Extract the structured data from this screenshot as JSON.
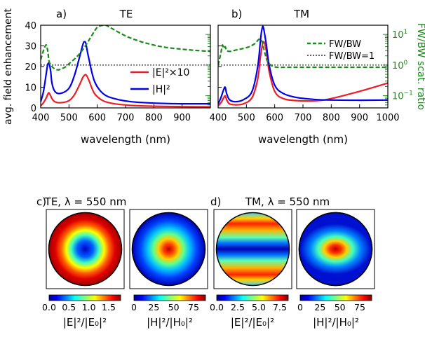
{
  "chart_data": [
    {
      "type": "line",
      "panel_label": "a)",
      "title": "TE",
      "xlabel": "wavelength (nm)",
      "ylabel": "avg. field enhancement",
      "y2label": "FW/BW scat. ratio",
      "xlim": [
        400,
        1000
      ],
      "ylim": [
        0,
        40
      ],
      "y2lim": [
        0.04,
        20
      ],
      "y2scale": "log",
      "xticks": [
        400,
        500,
        600,
        700,
        800,
        900
      ],
      "yticks": [
        0,
        10,
        20,
        30,
        40
      ],
      "y2ticks": [
        0.1,
        1,
        10
      ],
      "legend": {
        "position": "center-right",
        "entries": [
          "|E|²×10",
          "|H|²"
        ]
      },
      "reference_line": {
        "y2": 1
      },
      "series": [
        {
          "name": "|E|²×10",
          "color": "#ee1c25",
          "axis": "left",
          "x": [
            400,
            410,
            420,
            425,
            430,
            440,
            450,
            470,
            500,
            520,
            540,
            550,
            560,
            570,
            590,
            620,
            660,
            720,
            800,
            900,
            1000
          ],
          "y": [
            1.0,
            2.5,
            5.0,
            6.6,
            7.2,
            4.5,
            3.0,
            2.5,
            3.5,
            6.5,
            12.0,
            15.0,
            16.0,
            13.5,
            7.0,
            3.5,
            2.0,
            1.2,
            0.8,
            0.6,
            0.5
          ]
        },
        {
          "name": "|H|²",
          "color": "#0000ee",
          "axis": "left",
          "x": [
            400,
            410,
            420,
            425,
            430,
            435,
            440,
            450,
            470,
            500,
            520,
            540,
            550,
            555,
            560,
            570,
            590,
            620,
            660,
            720,
            800,
            900,
            1000
          ],
          "y": [
            3.0,
            8.0,
            17.0,
            21.0,
            21.5,
            18.0,
            12.0,
            8.0,
            7.0,
            9.5,
            16.0,
            26.0,
            31.0,
            32.0,
            31.0,
            24.0,
            13.0,
            7.0,
            4.5,
            3.0,
            2.3,
            2.0,
            2.0
          ]
        },
        {
          "name": "FW/BW",
          "color": "#1a8a1a",
          "axis": "right",
          "dash": true,
          "x": [
            400,
            410,
            418,
            422,
            426,
            430,
            440,
            450,
            460,
            470,
            480,
            490,
            500,
            520,
            540,
            560,
            580,
            600,
            620,
            630,
            650,
            700,
            750,
            800,
            850,
            900,
            950,
            1000
          ],
          "y": [
            1.5,
            3.0,
            4.5,
            4.0,
            2.5,
            1.3,
            0.9,
            0.75,
            0.7,
            0.72,
            0.8,
            0.9,
            1.1,
            1.6,
            2.5,
            4.5,
            9.0,
            17.0,
            20.0,
            20.0,
            16.0,
            9.0,
            6.0,
            4.5,
            3.7,
            3.3,
            3.0,
            2.8
          ]
        }
      ]
    },
    {
      "type": "line",
      "panel_label": "b)",
      "title": "TM",
      "xlabel": "wavelength (nm)",
      "ylabel": "avg. field enhancement",
      "y2label": "FW/BW scat. ratio",
      "xlim": [
        400,
        1000
      ],
      "ylim": [
        0,
        40
      ],
      "y2lim": [
        0.04,
        20
      ],
      "y2scale": "log",
      "xticks": [
        400,
        500,
        600,
        700,
        800,
        900,
        1000
      ],
      "yticks": [
        0,
        10,
        20,
        30,
        40
      ],
      "y2ticks": [
        0.1,
        1,
        10
      ],
      "legend": {
        "position": "top-right",
        "entries": [
          "FW/BW",
          "FW/BW=1"
        ]
      },
      "reference_line": {
        "y2": 1
      },
      "series": [
        {
          "name": "|E|²×10",
          "color": "#ee1c25",
          "axis": "left",
          "x": [
            400,
            410,
            420,
            425,
            430,
            440,
            460,
            490,
            520,
            540,
            550,
            560,
            570,
            580,
            600,
            630,
            680,
            750,
            800,
            900,
            1000
          ],
          "y": [
            1.0,
            2.5,
            5.0,
            5.8,
            4.0,
            2.0,
            1.5,
            2.0,
            5.0,
            14.0,
            25.0,
            32.0,
            28.0,
            18.0,
            8.0,
            4.5,
            3.5,
            3.5,
            4.5,
            8.0,
            12.0
          ]
        },
        {
          "name": "|H|²",
          "color": "#0000ee",
          "axis": "left",
          "x": [
            400,
            410,
            420,
            425,
            430,
            440,
            460,
            490,
            520,
            540,
            550,
            555,
            560,
            570,
            580,
            600,
            630,
            680,
            750,
            800,
            900,
            1000
          ],
          "y": [
            2.0,
            5.0,
            9.0,
            10.0,
            7.0,
            4.0,
            3.0,
            4.0,
            8.0,
            20.0,
            33.0,
            38.0,
            39.0,
            31.0,
            21.0,
            11.0,
            7.0,
            5.0,
            4.0,
            3.8,
            3.7,
            3.8
          ]
        },
        {
          "name": "FW/BW",
          "color": "#1a8a1a",
          "axis": "right",
          "dash": true,
          "x": [
            400,
            410,
            415,
            420,
            425,
            430,
            440,
            450,
            470,
            490,
            510,
            530,
            545,
            555,
            565,
            575,
            590,
            610,
            650,
            700,
            800,
            900,
            1000
          ],
          "y": [
            1.0,
            2.5,
            4.5,
            3.5,
            4.0,
            3.0,
            2.8,
            2.9,
            3.2,
            3.5,
            4.0,
            5.0,
            7.0,
            6.0,
            2.5,
            1.3,
            0.95,
            0.85,
            0.85,
            0.85,
            0.85,
            0.85,
            0.85
          ]
        }
      ]
    },
    {
      "type": "heatmap",
      "panel_label": "c)",
      "title": "TE, λ = 550 nm",
      "maps": [
        {
          "colorbar_label": "|E|²/|E₀|²",
          "ticks": [
            "0.0",
            "0.5",
            "1.0",
            "1.5"
          ],
          "range": [
            0,
            1.8
          ]
        },
        {
          "colorbar_label": "|H|²/|H₀|²",
          "ticks": [
            "0",
            "25",
            "50",
            "75"
          ],
          "range": [
            0,
            90
          ]
        }
      ]
    },
    {
      "type": "heatmap",
      "panel_label": "d)",
      "title": "TM, λ = 550 nm",
      "maps": [
        {
          "colorbar_label": "|E|²/|E₀|²",
          "ticks": [
            "0.0",
            "2.5",
            "5.0",
            "7.5"
          ],
          "range": [
            0,
            8.5
          ]
        },
        {
          "colorbar_label": "|H|²/|H₀|²",
          "ticks": [
            "0",
            "25",
            "50",
            "75"
          ],
          "range": [
            0,
            90
          ]
        }
      ]
    }
  ],
  "colors": {
    "e_line": "#ee1c25",
    "h_line": "#0000ee",
    "ratio_line": "#1a8a1a",
    "reference": "#000000"
  }
}
